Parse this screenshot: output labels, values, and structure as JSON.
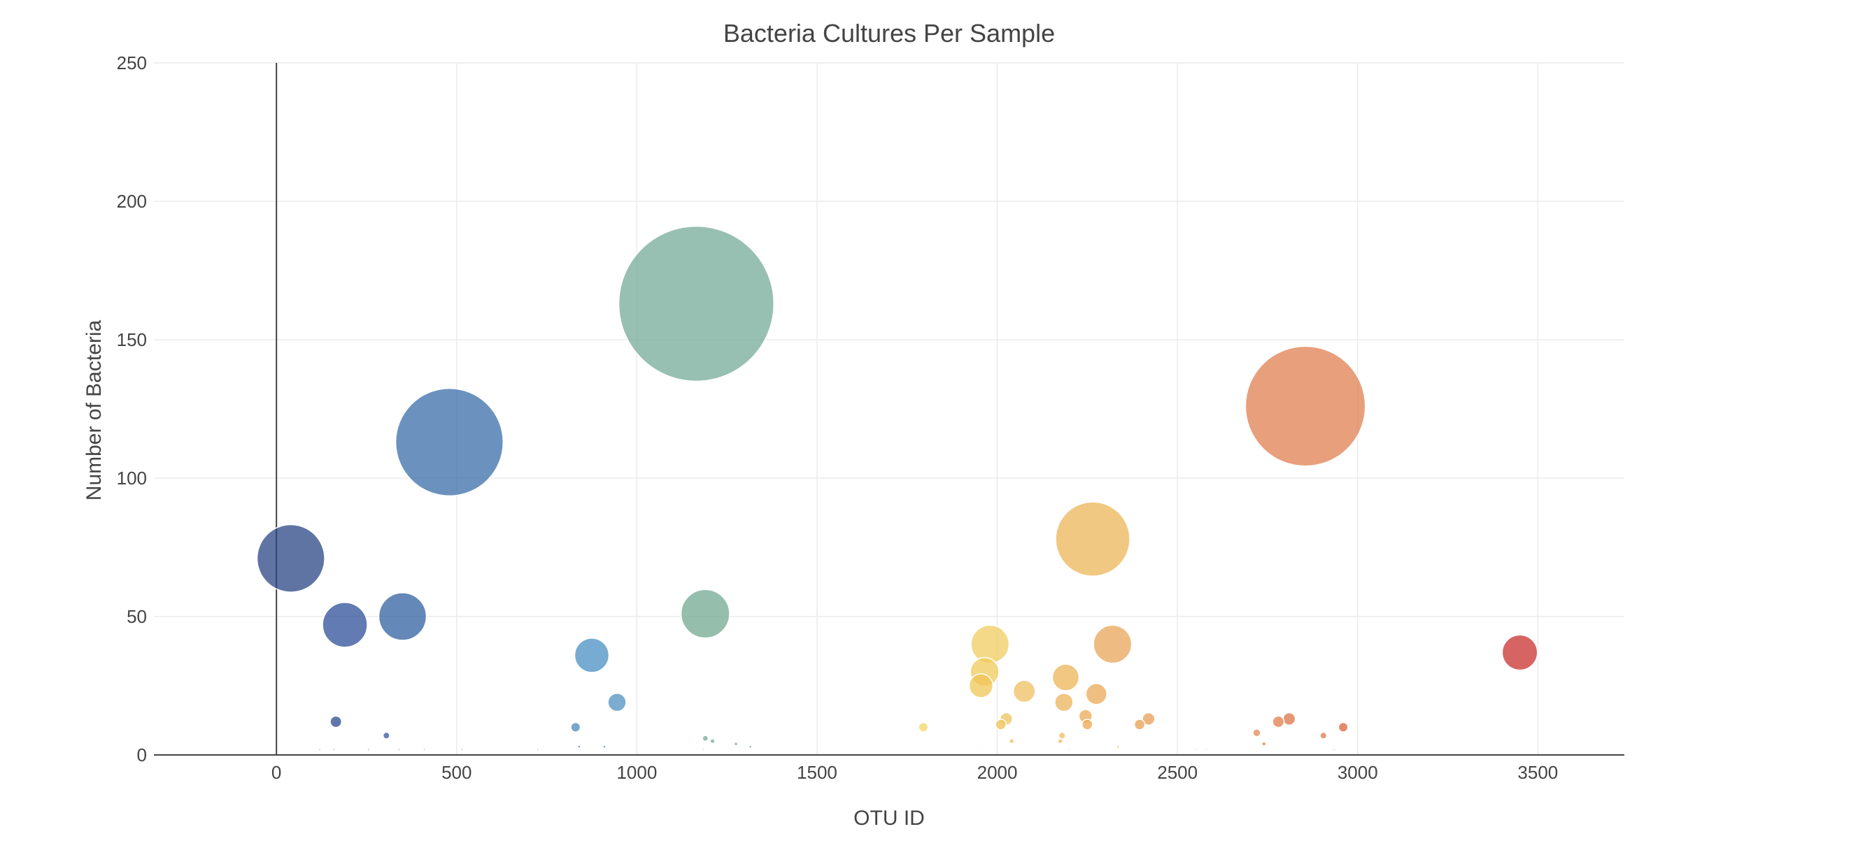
{
  "chart_data": {
    "type": "scatter",
    "title": "Bacteria Cultures Per Sample",
    "xlabel": "OTU ID",
    "ylabel": "Number of Bacteria",
    "xlim": [
      -340,
      3740
    ],
    "ylim": [
      0,
      250
    ],
    "x_ticks": [
      0,
      500,
      1000,
      1500,
      2000,
      2500,
      3000,
      3500
    ],
    "y_ticks": [
      0,
      50,
      100,
      150,
      200,
      250
    ],
    "grid": true,
    "legend": "none",
    "marker_opacity": 0.75,
    "colorscale": [
      "#2b4f97",
      "#3a74b0",
      "#4a97c9",
      "#76ab98",
      "#f2dc72",
      "#efb862",
      "#e7885a",
      "#c8302f"
    ],
    "points": [
      {
        "x": 40,
        "y": 71,
        "color": "#2b4686"
      },
      {
        "x": 190,
        "y": 47,
        "color": "#2d4f98"
      },
      {
        "x": 350,
        "y": 50,
        "color": "#30609f"
      },
      {
        "x": 480,
        "y": 113,
        "color": "#3a6ea8"
      },
      {
        "x": 165,
        "y": 12,
        "color": "#2b4a90"
      },
      {
        "x": 305,
        "y": 7,
        "color": "#30589f"
      },
      {
        "x": 875,
        "y": 36,
        "color": "#4a8fc2"
      },
      {
        "x": 945,
        "y": 19,
        "color": "#4d91c0"
      },
      {
        "x": 830,
        "y": 10,
        "color": "#4a88bb"
      },
      {
        "x": 1165,
        "y": 163,
        "color": "#76ab98"
      },
      {
        "x": 1190,
        "y": 51,
        "color": "#72a892"
      },
      {
        "x": 1190,
        "y": 6,
        "color": "#75a893"
      },
      {
        "x": 1210,
        "y": 5,
        "color": "#7bae96"
      },
      {
        "x": 1275,
        "y": 4,
        "color": "#8ab0a0"
      },
      {
        "x": 1315,
        "y": 3,
        "color": "#8aa7a0"
      },
      {
        "x": 1795,
        "y": 10,
        "color": "#f2d76a"
      },
      {
        "x": 1980,
        "y": 40,
        "color": "#f0cd60"
      },
      {
        "x": 1965,
        "y": 30,
        "color": "#efc95a"
      },
      {
        "x": 1955,
        "y": 25,
        "color": "#efc555"
      },
      {
        "x": 2010,
        "y": 11,
        "color": "#efc050"
      },
      {
        "x": 2025,
        "y": 13,
        "color": "#edc35b"
      },
      {
        "x": 2040,
        "y": 5,
        "color": "#efbf52"
      },
      {
        "x": 2075,
        "y": 23,
        "color": "#eec062"
      },
      {
        "x": 2265,
        "y": 78,
        "color": "#ecb657"
      },
      {
        "x": 2190,
        "y": 28,
        "color": "#ecb457"
      },
      {
        "x": 2185,
        "y": 19,
        "color": "#ecb158"
      },
      {
        "x": 2180,
        "y": 7,
        "color": "#efbb5a"
      },
      {
        "x": 2175,
        "y": 5,
        "color": "#efb955"
      },
      {
        "x": 2245,
        "y": 14,
        "color": "#ebaa55"
      },
      {
        "x": 2250,
        "y": 11,
        "color": "#eba550"
      },
      {
        "x": 2275,
        "y": 22,
        "color": "#eaa856"
      },
      {
        "x": 2320,
        "y": 40,
        "color": "#e8a658"
      },
      {
        "x": 2395,
        "y": 11,
        "color": "#ea9e50"
      },
      {
        "x": 2420,
        "y": 13,
        "color": "#e99c55"
      },
      {
        "x": 2855,
        "y": 126,
        "color": "#e07f50"
      },
      {
        "x": 2720,
        "y": 8,
        "color": "#e18a50"
      },
      {
        "x": 2740,
        "y": 4,
        "color": "#dd6e30"
      },
      {
        "x": 2780,
        "y": 12,
        "color": "#e07c48"
      },
      {
        "x": 2810,
        "y": 13,
        "color": "#dd7444"
      },
      {
        "x": 2905,
        "y": 7,
        "color": "#df7a48"
      },
      {
        "x": 2960,
        "y": 10,
        "color": "#d9653c"
      },
      {
        "x": 3450,
        "y": 37,
        "color": "#c8302f"
      },
      {
        "x": 120,
        "y": 2,
        "color": "#2b4a90"
      },
      {
        "x": 160,
        "y": 2,
        "color": "#2b4a90"
      },
      {
        "x": 255,
        "y": 2,
        "color": "#2d4f98"
      },
      {
        "x": 340,
        "y": 2,
        "color": "#30589f"
      },
      {
        "x": 410,
        "y": 2,
        "color": "#3a6ea8"
      },
      {
        "x": 515,
        "y": 2,
        "color": "#3a6ea8"
      },
      {
        "x": 725,
        "y": 2,
        "color": "#4a88bb"
      },
      {
        "x": 840,
        "y": 3,
        "color": "#4a88bb"
      },
      {
        "x": 910,
        "y": 3,
        "color": "#4a8fc2"
      },
      {
        "x": 1185,
        "y": 2,
        "color": "#75a893"
      },
      {
        "x": 1955,
        "y": 2,
        "color": "#f0cd60"
      },
      {
        "x": 2200,
        "y": 2,
        "color": "#ecb158"
      },
      {
        "x": 2335,
        "y": 3,
        "color": "#efb955"
      },
      {
        "x": 2550,
        "y": 2,
        "color": "#e99c55"
      },
      {
        "x": 2580,
        "y": 2,
        "color": "#e99c55"
      },
      {
        "x": 2935,
        "y": 2,
        "color": "#dd6e30"
      }
    ]
  }
}
